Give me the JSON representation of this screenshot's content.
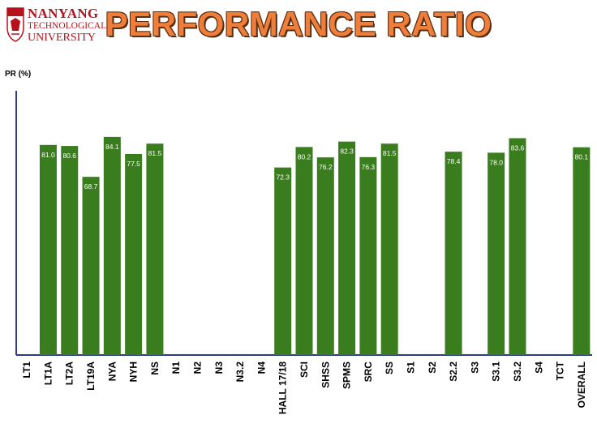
{
  "header": {
    "logo": {
      "line1": "NANYANG",
      "line2": "TECHNOLOGICAL",
      "line3": "UNIVERSITY"
    },
    "title": "PERFORMANCE RATIO"
  },
  "colors": {
    "bar": "#3a7d1e",
    "axis": "#2b3a8f",
    "title": "#f07e3b",
    "logo": "#b5121b"
  },
  "chart_data": {
    "type": "bar",
    "ylabel": "PR (%)",
    "xlabel": "",
    "ylim": [
      0,
      100
    ],
    "grid": false,
    "categories": [
      "LT1",
      "LT1A",
      "LT2A",
      "LT19A",
      "NYA",
      "NYH",
      "NS",
      "N1",
      "N2",
      "N3",
      "N3.2",
      "N4",
      "HALL 17/18",
      "SCI",
      "SHSS",
      "SPMS",
      "SRC",
      "SS",
      "S1",
      "S2",
      "S2.2",
      "S3",
      "S3.1",
      "S3.2",
      "S4",
      "TCT",
      "OVERALL"
    ],
    "values": [
      null,
      81.0,
      80.6,
      68.7,
      84.1,
      77.5,
      81.5,
      null,
      null,
      null,
      null,
      null,
      72.3,
      80.2,
      76.2,
      82.3,
      76.3,
      81.5,
      null,
      null,
      78.4,
      null,
      78.0,
      83.6,
      null,
      null,
      80.1
    ],
    "value_labels": [
      "",
      "81.0",
      "80.6",
      "68.7",
      "84.1",
      "77.5",
      "81.5",
      "",
      "",
      "",
      "",
      "",
      "72.3",
      "80.2",
      "76.2",
      "82.3",
      "76.3",
      "81.5",
      "",
      "",
      "78.4",
      "",
      "78.0",
      "83.6",
      "",
      "",
      "80.1"
    ]
  }
}
